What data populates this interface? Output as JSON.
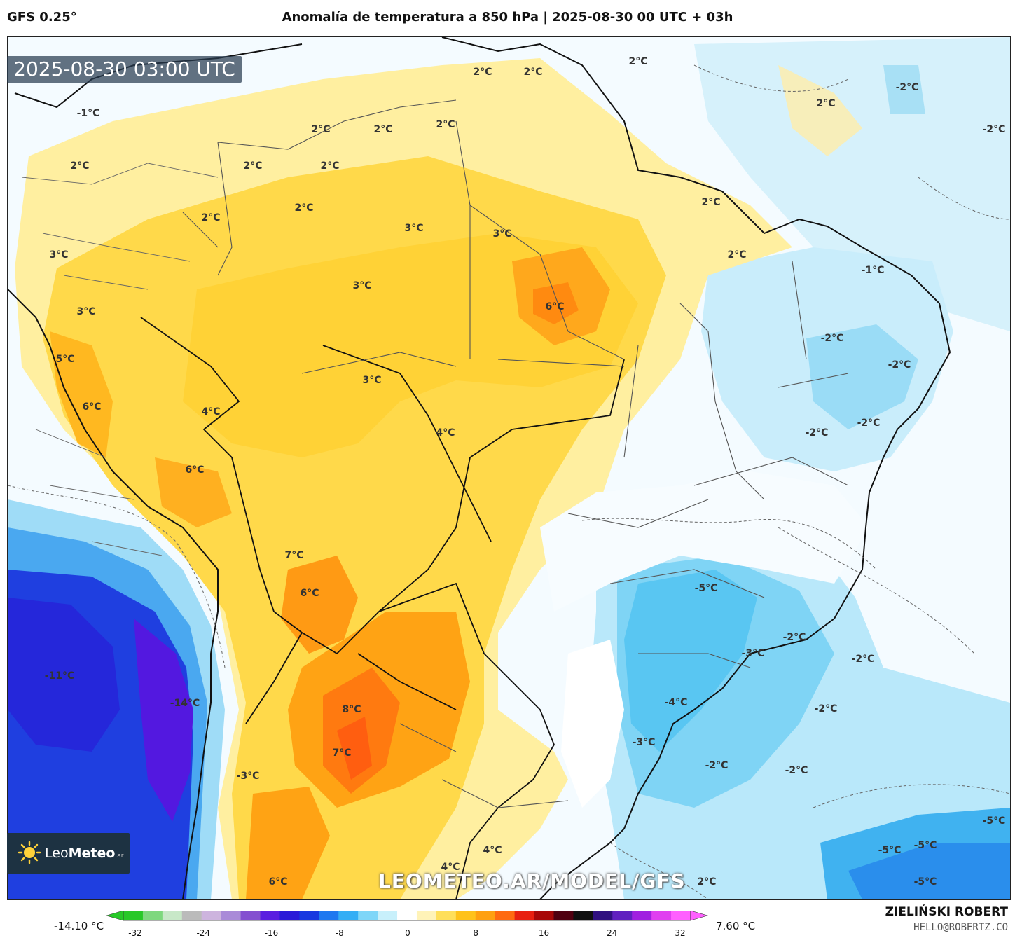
{
  "header": {
    "model": "GFS 0.25°",
    "title": "Anomalía de temperatura a 850 hPa | 2025-08-30 00 UTC + 03h"
  },
  "map": {
    "valid_time": "2025-08-30 03:00 UTC",
    "watermark": "LEOMETEO.AR/MODEL/GFS",
    "logo": {
      "name": "Leo",
      "bold": "Meteo",
      "tld": ".ar"
    },
    "labels": [
      {
        "text": "2°C"
      },
      {
        "text": "2°C"
      },
      {
        "text": "2°C"
      },
      {
        "text": "-2°C"
      },
      {
        "text": "2°C"
      },
      {
        "text": "-2°C"
      },
      {
        "text": "-1°C"
      },
      {
        "text": "2°C"
      },
      {
        "text": "2°C"
      },
      {
        "text": "2°C"
      },
      {
        "text": "2°C"
      },
      {
        "text": "2°C"
      },
      {
        "text": "2°C"
      },
      {
        "text": "2°C"
      },
      {
        "text": "2°C"
      },
      {
        "text": "3°C"
      },
      {
        "text": "3°C"
      },
      {
        "text": "2°C"
      },
      {
        "text": "2°C"
      },
      {
        "text": "3°C"
      },
      {
        "text": "3°C"
      },
      {
        "text": "-1°C"
      },
      {
        "text": "6°C"
      },
      {
        "text": "3°C"
      },
      {
        "text": "-2°C"
      },
      {
        "text": "5°C"
      },
      {
        "text": "-2°C"
      },
      {
        "text": "3°C"
      },
      {
        "text": "6°C"
      },
      {
        "text": "4°C"
      },
      {
        "text": "4°C"
      },
      {
        "text": "-2°C"
      },
      {
        "text": "-2°C"
      },
      {
        "text": "6°C"
      },
      {
        "text": "7°C"
      },
      {
        "text": "6°C"
      },
      {
        "text": "-5°C"
      },
      {
        "text": "-2°C"
      },
      {
        "text": "-3°C"
      },
      {
        "text": "-2°C"
      },
      {
        "text": "-11°C"
      },
      {
        "text": "-14°C"
      },
      {
        "text": "8°C"
      },
      {
        "text": "-4°C"
      },
      {
        "text": "-2°C"
      },
      {
        "text": "-3°C"
      },
      {
        "text": "7°C"
      },
      {
        "text": "-2°C"
      },
      {
        "text": "-2°C"
      },
      {
        "text": "-3°C"
      },
      {
        "text": "-5°C"
      },
      {
        "text": "4°C"
      },
      {
        "text": "-5°C"
      },
      {
        "text": "-5°C"
      },
      {
        "text": "4°C"
      },
      {
        "text": "6°C"
      },
      {
        "text": "2°C"
      },
      {
        "text": "-5°C"
      }
    ]
  },
  "colorbar": {
    "min_label": "-14.10 °C",
    "max_label": "7.60 °C",
    "ticks": [
      "-32",
      "-24",
      "-16",
      "-8",
      "0",
      "8",
      "16",
      "24",
      "32"
    ],
    "colors": [
      "#28c828",
      "#7ed87e",
      "#c8e8c8",
      "#bbbbbb",
      "#cdb4de",
      "#a98ad8",
      "#8450d0",
      "#5a1ee0",
      "#2a1ad8",
      "#1838e0",
      "#1e78f0",
      "#34aef5",
      "#7ed6f8",
      "#c8f0fb",
      "#ffffff",
      "#fff3b8",
      "#ffdf5a",
      "#ffc21a",
      "#ffa010",
      "#ff6a10",
      "#e82010",
      "#a80808",
      "#500010",
      "#101010",
      "#301080",
      "#6020c0",
      "#a020e0",
      "#e040f0",
      "#ff60ff"
    ]
  },
  "footer": {
    "author": "ZIELIŃSKI ROBERT",
    "email": "HELLO@ROBERTZ.CO"
  }
}
